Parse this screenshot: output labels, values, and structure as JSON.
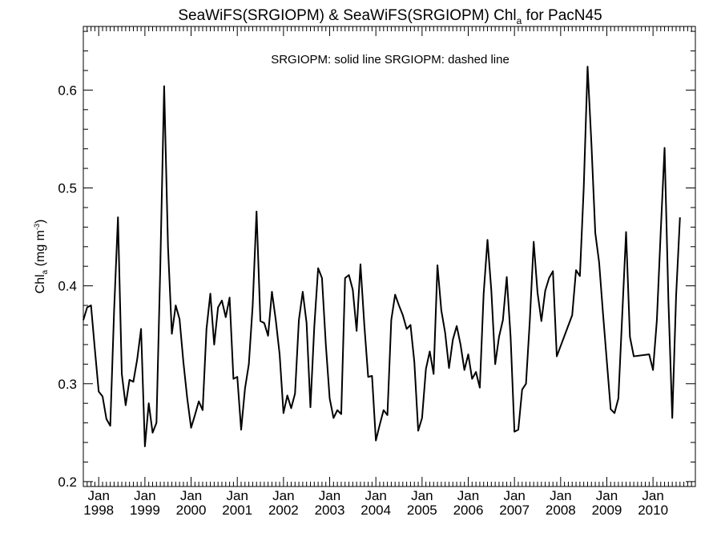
{
  "chart_data": {
    "type": "line",
    "title": "SeaWiFS(SRGIOPM) & SeaWiFS(SRGIOPM)  Chl",
    "title_sub": "a",
    "title_tail": " for PacN45",
    "annotation": "SRGIOPM: solid line   SRGIOPM: dashed line",
    "ylabel": "Chl",
    "ylabel_sub": "a",
    "ylabel_tail": " (mg m",
    "ylabel_sup": "-3",
    "ylabel_end": ")",
    "xlim": [
      "1997-09-01",
      "2010-12-01"
    ],
    "ylim": [
      0.195,
      0.665
    ],
    "y_ticks": [
      0.2,
      0.3,
      0.4,
      0.5,
      0.6
    ],
    "y_tick_labels": [
      "0.2",
      "0.3",
      "0.4",
      "0.5",
      "0.6"
    ],
    "x_ticks": [
      {
        "date": "1998-01-01",
        "month": "Jan",
        "year": "1998"
      },
      {
        "date": "1999-01-01",
        "month": "Jan",
        "year": "1999"
      },
      {
        "date": "2000-01-01",
        "month": "Jan",
        "year": "2000"
      },
      {
        "date": "2001-01-01",
        "month": "Jan",
        "year": "2001"
      },
      {
        "date": "2002-01-01",
        "month": "Jan",
        "year": "2002"
      },
      {
        "date": "2003-01-01",
        "month": "Jan",
        "year": "2003"
      },
      {
        "date": "2004-01-01",
        "month": "Jan",
        "year": "2004"
      },
      {
        "date": "2005-01-01",
        "month": "Jan",
        "year": "2005"
      },
      {
        "date": "2006-01-01",
        "month": "Jan",
        "year": "2006"
      },
      {
        "date": "2007-01-01",
        "month": "Jan",
        "year": "2007"
      },
      {
        "date": "2008-01-01",
        "month": "Jan",
        "year": "2008"
      },
      {
        "date": "2009-01-01",
        "month": "Jan",
        "year": "2009"
      },
      {
        "date": "2010-01-01",
        "month": "Jan",
        "year": "2010"
      }
    ],
    "series": [
      {
        "style": "solid",
        "color": "#000000",
        "points": [
          [
            "1997-09-01",
            0.365
          ],
          [
            "1997-10-01",
            0.378
          ],
          [
            "1997-11-01",
            0.38
          ],
          [
            "1997-12-01",
            0.335
          ],
          [
            "1998-01-01",
            0.292
          ],
          [
            "1998-02-01",
            0.287
          ],
          [
            "1998-03-01",
            0.264
          ],
          [
            "1998-04-01",
            0.257
          ],
          [
            "1998-05-01",
            0.375
          ],
          [
            "1998-06-01",
            0.47
          ],
          [
            "1998-07-01",
            0.31
          ],
          [
            "1998-08-01",
            0.278
          ],
          [
            "1998-09-01",
            0.304
          ],
          [
            "1998-10-01",
            0.302
          ],
          [
            "1998-11-01",
            0.325
          ],
          [
            "1998-12-01",
            0.356
          ],
          [
            "1999-01-01",
            0.236
          ],
          [
            "1999-02-01",
            0.28
          ],
          [
            "1999-03-01",
            0.25
          ],
          [
            "1999-04-01",
            0.26
          ],
          [
            "1999-05-01",
            0.42
          ],
          [
            "1999-06-01",
            0.604
          ],
          [
            "1999-07-01",
            0.44
          ],
          [
            "1999-08-01",
            0.351
          ],
          [
            "1999-09-01",
            0.38
          ],
          [
            "1999-10-01",
            0.366
          ],
          [
            "1999-11-01",
            0.322
          ],
          [
            "1999-12-01",
            0.285
          ],
          [
            "2000-01-01",
            0.255
          ],
          [
            "2000-02-01",
            0.268
          ],
          [
            "2000-03-01",
            0.282
          ],
          [
            "2000-04-01",
            0.273
          ],
          [
            "2000-05-01",
            0.356
          ],
          [
            "2000-06-01",
            0.392
          ],
          [
            "2000-07-01",
            0.34
          ],
          [
            "2000-08-01",
            0.378
          ],
          [
            "2000-09-01",
            0.385
          ],
          [
            "2000-10-01",
            0.368
          ],
          [
            "2000-11-01",
            0.388
          ],
          [
            "2000-12-01",
            0.305
          ],
          [
            "2001-01-01",
            0.307
          ],
          [
            "2001-02-01",
            0.253
          ],
          [
            "2001-03-01",
            0.295
          ],
          [
            "2001-04-01",
            0.32
          ],
          [
            "2001-05-01",
            0.38
          ],
          [
            "2001-06-01",
            0.476
          ],
          [
            "2001-07-01",
            0.364
          ],
          [
            "2001-08-01",
            0.362
          ],
          [
            "2001-09-01",
            0.349
          ],
          [
            "2001-10-01",
            0.394
          ],
          [
            "2001-11-01",
            0.365
          ],
          [
            "2001-12-01",
            0.33
          ],
          [
            "2002-01-01",
            0.27
          ],
          [
            "2002-02-01",
            0.288
          ],
          [
            "2002-03-01",
            0.275
          ],
          [
            "2002-04-01",
            0.29
          ],
          [
            "2002-05-01",
            0.365
          ],
          [
            "2002-06-01",
            0.394
          ],
          [
            "2002-07-01",
            0.362
          ],
          [
            "2002-08-01",
            0.276
          ],
          [
            "2002-09-01",
            0.358
          ],
          [
            "2002-10-01",
            0.418
          ],
          [
            "2002-11-01",
            0.408
          ],
          [
            "2002-12-01",
            0.34
          ],
          [
            "2003-01-01",
            0.285
          ],
          [
            "2003-02-01",
            0.265
          ],
          [
            "2003-03-01",
            0.273
          ],
          [
            "2003-04-01",
            0.269
          ],
          [
            "2003-05-01",
            0.408
          ],
          [
            "2003-06-01",
            0.411
          ],
          [
            "2003-07-01",
            0.396
          ],
          [
            "2003-08-01",
            0.354
          ],
          [
            "2003-09-01",
            0.422
          ],
          [
            "2003-10-01",
            0.36
          ],
          [
            "2003-11-01",
            0.307
          ],
          [
            "2003-12-01",
            0.308
          ],
          [
            "2004-01-01",
            0.242
          ],
          [
            "2004-02-01",
            0.258
          ],
          [
            "2004-03-01",
            0.273
          ],
          [
            "2004-04-01",
            0.268
          ],
          [
            "2004-05-01",
            0.365
          ],
          [
            "2004-06-01",
            0.391
          ],
          [
            "2004-07-01",
            0.38
          ],
          [
            "2004-08-01",
            0.37
          ],
          [
            "2004-09-01",
            0.356
          ],
          [
            "2004-10-01",
            0.36
          ],
          [
            "2004-11-01",
            0.322
          ],
          [
            "2004-12-01",
            0.252
          ],
          [
            "2005-01-01",
            0.265
          ],
          [
            "2005-02-01",
            0.315
          ],
          [
            "2005-03-01",
            0.333
          ],
          [
            "2005-04-01",
            0.31
          ],
          [
            "2005-05-01",
            0.421
          ],
          [
            "2005-06-01",
            0.375
          ],
          [
            "2005-07-01",
            0.352
          ],
          [
            "2005-08-01",
            0.316
          ],
          [
            "2005-09-01",
            0.345
          ],
          [
            "2005-10-01",
            0.359
          ],
          [
            "2005-11-01",
            0.34
          ],
          [
            "2005-12-01",
            0.314
          ],
          [
            "2006-01-01",
            0.33
          ],
          [
            "2006-02-01",
            0.305
          ],
          [
            "2006-03-01",
            0.312
          ],
          [
            "2006-04-01",
            0.296
          ],
          [
            "2006-05-01",
            0.392
          ],
          [
            "2006-06-01",
            0.447
          ],
          [
            "2006-07-01",
            0.395
          ],
          [
            "2006-08-01",
            0.32
          ],
          [
            "2006-09-01",
            0.348
          ],
          [
            "2006-10-01",
            0.365
          ],
          [
            "2006-11-01",
            0.409
          ],
          [
            "2006-12-01",
            0.348
          ],
          [
            "2007-01-01",
            0.251
          ],
          [
            "2007-02-01",
            0.253
          ],
          [
            "2007-03-01",
            0.294
          ],
          [
            "2007-04-01",
            0.3
          ],
          [
            "2007-05-01",
            0.365
          ],
          [
            "2007-06-01",
            0.445
          ],
          [
            "2007-07-01",
            0.393
          ],
          [
            "2007-08-01",
            0.364
          ],
          [
            "2007-09-01",
            0.395
          ],
          [
            "2007-10-01",
            0.408
          ],
          [
            "2007-11-01",
            0.415
          ],
          [
            "2007-12-01",
            0.328
          ],
          [
            "2008-04-01",
            0.37
          ],
          [
            "2008-05-01",
            0.416
          ],
          [
            "2008-06-01",
            0.41
          ],
          [
            "2008-07-01",
            0.5
          ],
          [
            "2008-08-01",
            0.624
          ],
          [
            "2008-09-01",
            0.545
          ],
          [
            "2008-10-01",
            0.454
          ],
          [
            "2008-11-01",
            0.424
          ],
          [
            "2008-12-01",
            0.372
          ],
          [
            "2009-01-01",
            0.323
          ],
          [
            "2009-02-01",
            0.274
          ],
          [
            "2009-03-01",
            0.27
          ],
          [
            "2009-04-01",
            0.285
          ],
          [
            "2009-05-01",
            0.37
          ],
          [
            "2009-06-01",
            0.455
          ],
          [
            "2009-07-01",
            0.348
          ],
          [
            "2009-08-01",
            0.328
          ],
          [
            "2009-12-01",
            0.33
          ],
          [
            "2010-01-01",
            0.314
          ],
          [
            "2010-02-01",
            0.365
          ],
          [
            "2010-03-01",
            0.455
          ],
          [
            "2010-04-01",
            0.541
          ],
          [
            "2010-05-01",
            0.385
          ],
          [
            "2010-06-01",
            0.265
          ],
          [
            "2010-07-01",
            0.39
          ],
          [
            "2010-08-01",
            0.47
          ]
        ]
      }
    ]
  }
}
